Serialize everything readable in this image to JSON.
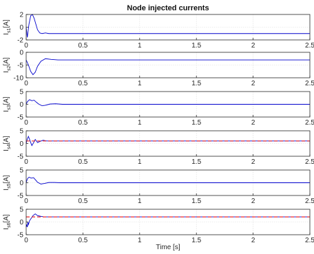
{
  "chart_data": {
    "type": "line",
    "title": "Node injected currents",
    "xlabel": "Time [s]",
    "xlim": [
      0,
      2.5
    ],
    "x_ticks": [
      "0",
      "0.5",
      "1",
      "1.5",
      "2",
      "2.5"
    ],
    "grid": true,
    "colors": {
      "actual": "#0000cc",
      "reference": "#e8262b"
    },
    "panels": [
      {
        "ylabel_main": "I",
        "ylabel_sub": "s1",
        "ylabel_unit": "[A]",
        "ylim": [
          -2,
          2
        ],
        "y_ticks": [
          "-2",
          "0",
          "2"
        ],
        "series": [
          {
            "style": "actual",
            "x": [
              0,
              0.01,
              0.025,
              0.04,
              0.055,
              0.07,
              0.085,
              0.1,
              0.12,
              0.14,
              0.17,
              0.2,
              0.25,
              0.3,
              2.5
            ],
            "y": [
              0,
              -1.6,
              0.5,
              1.8,
              2.0,
              1.4,
              0.5,
              -0.4,
              -0.9,
              -1.0,
              -0.9,
              -1.0,
              -1.0,
              -1.0,
              -1.0
            ]
          }
        ]
      },
      {
        "ylabel_main": "I",
        "ylabel_sub": "s2",
        "ylabel_unit": "[A]",
        "ylim": [
          -10,
          0
        ],
        "y_ticks": [
          "-10",
          "-5",
          "0"
        ],
        "series": [
          {
            "style": "actual",
            "x": [
              0,
              0.02,
              0.04,
              0.06,
              0.08,
              0.1,
              0.13,
              0.17,
              0.22,
              0.28,
              0.35,
              2.5
            ],
            "y": [
              -3.0,
              -5.0,
              -7.5,
              -8.8,
              -7.8,
              -5.5,
              -3.5,
              -2.5,
              -2.8,
              -3.0,
              -3.0,
              -3.0
            ]
          }
        ]
      },
      {
        "ylabel_main": "I",
        "ylabel_sub": "s3",
        "ylabel_unit": "[A]",
        "ylim": [
          -5,
          5
        ],
        "y_ticks": [
          "-5",
          "0",
          "5"
        ],
        "series": [
          {
            "style": "actual",
            "x": [
              0,
              0.01,
              0.03,
              0.05,
              0.07,
              0.09,
              0.11,
              0.14,
              0.17,
              0.21,
              0.26,
              0.32,
              2.5
            ],
            "y": [
              0,
              1.0,
              1.8,
              1.4,
              1.6,
              0.8,
              0.1,
              -0.6,
              -0.4,
              0.1,
              0.2,
              0,
              0
            ]
          }
        ]
      },
      {
        "ylabel_main": "I",
        "ylabel_sub": "s4",
        "ylabel_unit": "[A]",
        "ylim": [
          -5,
          5
        ],
        "y_ticks": [
          "-5",
          "0",
          "5"
        ],
        "series": [
          {
            "style": "actual",
            "x": [
              0,
              0.01,
              0.02,
              0.035,
              0.05,
              0.065,
              0.08,
              0.1,
              0.12,
              0.15,
              0.18,
              0.22,
              2.5
            ],
            "y": [
              0,
              1.8,
              2.8,
              1.0,
              -0.8,
              0.3,
              1.6,
              0.4,
              0.8,
              1.3,
              1.0,
              1.0,
              1.0
            ]
          },
          {
            "style": "reference",
            "x": [
              0,
              2.5
            ],
            "y": [
              1.0,
              1.0
            ]
          }
        ]
      },
      {
        "ylabel_main": "I",
        "ylabel_sub": "s5",
        "ylabel_unit": "[A]",
        "ylim": [
          -5,
          5
        ],
        "y_ticks": [
          "-5",
          "0",
          "5"
        ],
        "series": [
          {
            "style": "actual",
            "x": [
              0,
              0.01,
              0.025,
              0.045,
              0.065,
              0.085,
              0.1,
              0.13,
              0.16,
              0.2,
              0.25,
              0.3,
              2.5
            ],
            "y": [
              0,
              1.5,
              2.2,
              1.8,
              2.0,
              1.0,
              0.2,
              -0.5,
              -0.3,
              0.1,
              0.1,
              0,
              0
            ]
          }
        ]
      },
      {
        "ylabel_main": "I",
        "ylabel_sub": "s6",
        "ylabel_unit": "[A]",
        "ylim": [
          -5,
          5
        ],
        "y_ticks": [
          "-5",
          "0",
          "5"
        ],
        "series": [
          {
            "style": "actual",
            "x": [
              0,
              0.005,
              0.01,
              0.015,
              0.02,
              0.03,
              0.045,
              0.06,
              0.08,
              0.1,
              0.13,
              0.16,
              0.2,
              2.5
            ],
            "y": [
              -2.0,
              -1.0,
              -2.0,
              0,
              -1.0,
              0.5,
              1.5,
              2.5,
              3.2,
              2.5,
              2.2,
              2.0,
              2.0,
              2.0
            ]
          },
          {
            "style": "reference",
            "x": [
              0,
              2.5
            ],
            "y": [
              2.0,
              2.0
            ]
          }
        ]
      }
    ]
  }
}
